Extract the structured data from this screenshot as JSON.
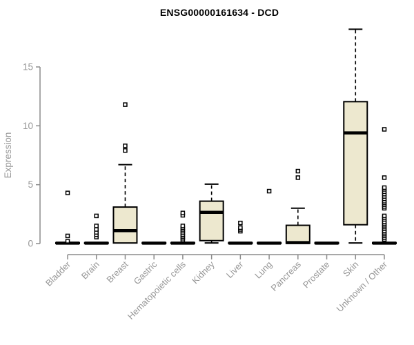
{
  "title": "ENSG00000161634 - DCD",
  "chart_data": {
    "type": "box",
    "title": "ENSG00000161634 - DCD",
    "ylabel": "Expression",
    "yticks": [
      0,
      5,
      10,
      15
    ],
    "ylim": [
      0,
      18.6
    ],
    "grid": false,
    "legend": "none",
    "categories": [
      "Bladder",
      "Brain",
      "Breast",
      "Gastric",
      "Hematopoietic cells",
      "Kidney",
      "Liver",
      "Lung",
      "Pancreas",
      "Prostate",
      "Skin",
      "Unknown / Other"
    ],
    "series": [
      {
        "name": "Bladder",
        "q1": 0,
        "median": 0.04,
        "q3": 0.08,
        "whisker_low": 0,
        "whisker_high": 0.08,
        "outliers": [
          0.2,
          0.65,
          4.3
        ]
      },
      {
        "name": "Brain",
        "q1": 0,
        "median": 0.04,
        "q3": 0.08,
        "whisker_low": 0,
        "whisker_high": 0.08,
        "outliers": [
          0.55,
          0.75,
          0.95,
          1.2,
          1.5,
          2.35
        ]
      },
      {
        "name": "Breast",
        "q1": 0.05,
        "median": 1.1,
        "q3": 3.1,
        "whisker_low": 0.05,
        "whisker_high": 6.7,
        "outliers": [
          7.9,
          8.3,
          11.8
        ]
      },
      {
        "name": "Gastric",
        "q1": 0,
        "median": 0.04,
        "q3": 0.08,
        "whisker_low": 0,
        "whisker_high": 0.08,
        "outliers": []
      },
      {
        "name": "Hematopoietic cells",
        "q1": 0,
        "median": 0.04,
        "q3": 0.08,
        "whisker_low": 0,
        "whisker_high": 0.08,
        "outliers": [
          0.3,
          0.45,
          0.6,
          0.75,
          0.9,
          1.05,
          1.2,
          1.35,
          1.5,
          2.4,
          2.6
        ]
      },
      {
        "name": "Kidney",
        "q1": 0.25,
        "median": 2.65,
        "q3": 3.6,
        "whisker_low": 0.05,
        "whisker_high": 5.05,
        "outliers": []
      },
      {
        "name": "Liver",
        "q1": 0,
        "median": 0.04,
        "q3": 0.08,
        "whisker_low": 0,
        "whisker_high": 0.08,
        "outliers": [
          1.05,
          1.2,
          1.35,
          1.75
        ]
      },
      {
        "name": "Lung",
        "q1": 0,
        "median": 0.04,
        "q3": 0.08,
        "whisker_low": 0,
        "whisker_high": 0.08,
        "outliers": [
          4.45
        ]
      },
      {
        "name": "Pancreas",
        "q1": 0.02,
        "median": 0.08,
        "q3": 1.55,
        "whisker_low": 0.02,
        "whisker_high": 3.0,
        "outliers": [
          5.6,
          6.15
        ]
      },
      {
        "name": "Prostate",
        "q1": 0,
        "median": 0.04,
        "q3": 0.08,
        "whisker_low": 0,
        "whisker_high": 0.08,
        "outliers": []
      },
      {
        "name": "Skin",
        "q1": 1.6,
        "median": 9.4,
        "q3": 12.05,
        "whisker_low": 0.05,
        "whisker_high": 18.2,
        "outliers": []
      },
      {
        "name": "Unknown / Other",
        "q1": 0,
        "median": 0.04,
        "q3": 0.08,
        "whisker_low": 0,
        "whisker_high": 0.08,
        "outliers": [
          0.35,
          0.5,
          0.65,
          0.8,
          0.95,
          1.1,
          1.25,
          1.4,
          1.55,
          1.7,
          1.85,
          2.05,
          2.2,
          2.35,
          3.0,
          3.15,
          3.3,
          3.45,
          3.6,
          3.8,
          4.0,
          4.2,
          4.4,
          4.6,
          4.75,
          5.6,
          9.7
        ]
      }
    ],
    "colors": {
      "box_fill": "#EDE8CF",
      "box_stroke": "#000000",
      "median": "#000000",
      "axis": "#8C8C8C",
      "tick_label": "#969696",
      "title": "#000000",
      "background": "#FFFFFF"
    }
  }
}
